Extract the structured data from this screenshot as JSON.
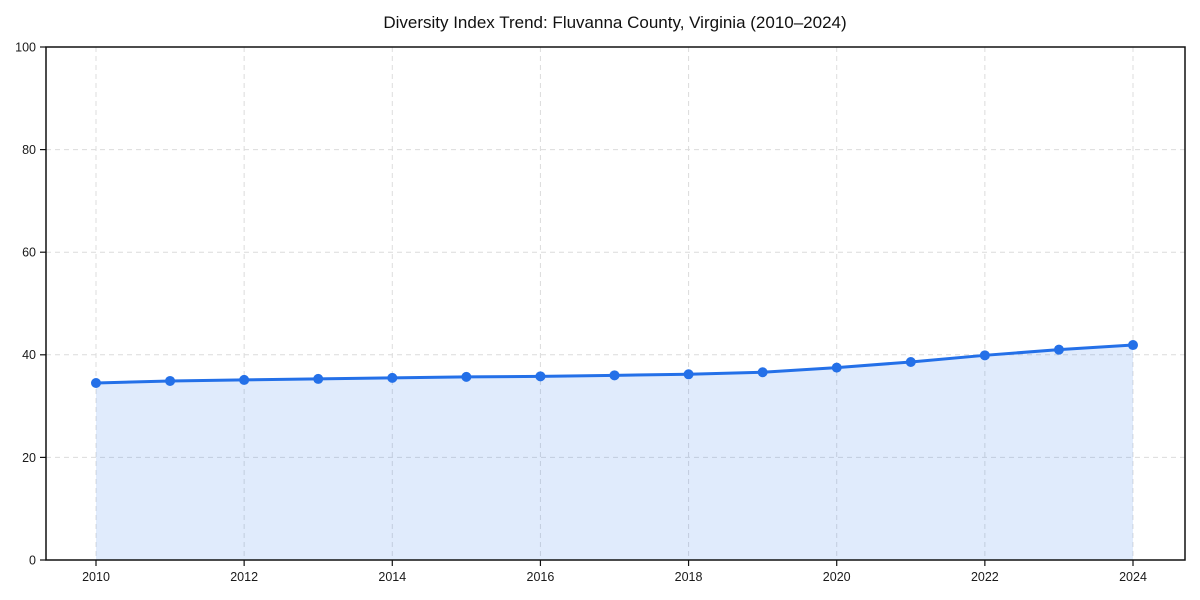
{
  "page": {
    "background": "#ffffff"
  },
  "chart_data": {
    "type": "line",
    "title": "Diversity Index Trend: Fluvanna County, Virginia (2010–2024)",
    "xlabel": "",
    "ylabel": "",
    "x": [
      2010,
      2011,
      2012,
      2013,
      2014,
      2015,
      2016,
      2017,
      2018,
      2019,
      2020,
      2021,
      2022,
      2023,
      2024
    ],
    "series": [
      {
        "name": "Diversity Index",
        "values": [
          34.5,
          34.9,
          35.1,
          35.3,
          35.5,
          35.7,
          35.8,
          36.0,
          36.2,
          36.6,
          37.5,
          38.6,
          39.9,
          41.0,
          41.9
        ]
      }
    ],
    "ylim": [
      0,
      100
    ],
    "y_ticks": [
      0,
      20,
      40,
      60,
      80,
      100
    ],
    "x_ticks": [
      2010,
      2012,
      2014,
      2016,
      2018,
      2020,
      2022,
      2024
    ],
    "grid": true,
    "legend_position": "none",
    "area_fill": true,
    "marker": "circle",
    "colors": {
      "line": "#2470e8",
      "marker": "#2470e8",
      "area_fill": "rgba(36, 112, 232, 0.14)",
      "grid": "#dcdcdc",
      "axis": "#111111",
      "title_text": "#111111",
      "tick_text": "#1a1a1a"
    }
  }
}
